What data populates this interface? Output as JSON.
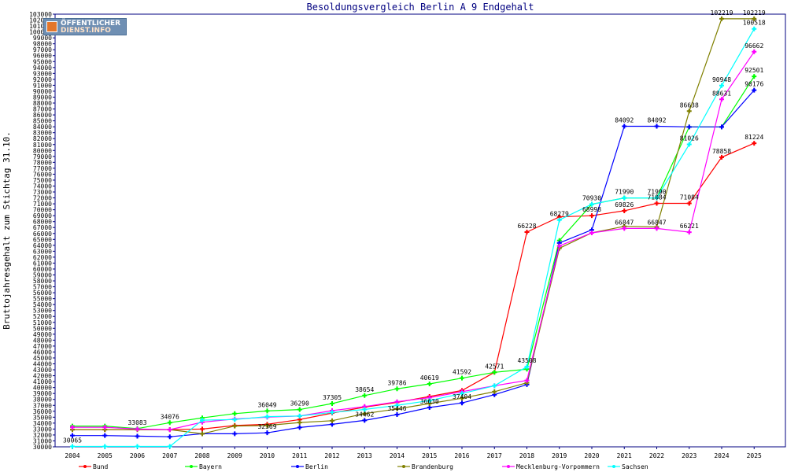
{
  "chart_data": {
    "type": "line",
    "title": "Besoldungsvergleich Berlin A 9 Endgehalt",
    "ylabel": "Bruttojahresgehalt zum Stichtag 31.10.",
    "xlabel": "",
    "ylim": [
      30000,
      103000
    ],
    "ytick_step": 1000,
    "grid": false,
    "legend_position": "bottom",
    "x": [
      "2004",
      "2005",
      "2006",
      "2007",
      "2008",
      "2009",
      "2010",
      "2011",
      "2012",
      "2013",
      "2014",
      "2015",
      "2016",
      "2017",
      "2018",
      "2019",
      "2020",
      "2021",
      "2022",
      "2023",
      "2024",
      "2025"
    ],
    "series": [
      {
        "name": "Bund",
        "color": "#ff0000",
        "values": [
          32900,
          32900,
          32900,
          32911,
          33000,
          33600,
          33800,
          34600,
          35700,
          36700,
          37500,
          38500,
          39500,
          42571,
          66228,
          68794,
          68998,
          69826,
          71084,
          71084,
          78858,
          81224
        ]
      },
      {
        "name": "Bayern",
        "color": "#00ff00",
        "values": [
          33500,
          33500,
          33083,
          34076,
          34880,
          35600,
          36049,
          36290,
          37305,
          38654,
          39786,
          40619,
          41592,
          42571,
          43106,
          64800,
          70930,
          71990,
          71990,
          83976,
          83976,
          92501
        ]
      },
      {
        "name": "Berlin",
        "color": "#0000ff",
        "values": [
          31900,
          31900,
          31800,
          31700,
          32200,
          32200,
          32369,
          33270,
          33800,
          34462,
          35446,
          36630,
          37404,
          38800,
          40500,
          64400,
          66600,
          84092,
          84092,
          83976,
          83976,
          90176
        ]
      },
      {
        "name": "Brandenburg",
        "color": "#808000",
        "values": [
          32900,
          32900,
          32911,
          32911,
          32200,
          33500,
          33600,
          34100,
          34400,
          35600,
          36400,
          37300,
          38200,
          39300,
          40800,
          63500,
          66100,
          67200,
          67100,
          86638,
          102219,
          102219
        ]
      },
      {
        "name": "Mecklenburg-Vorpommern",
        "color": "#ff00ff",
        "values": [
          33300,
          33300,
          33000,
          32911,
          34150,
          34700,
          35000,
          35200,
          36100,
          36800,
          37600,
          38300,
          39300,
          40300,
          41200,
          63900,
          66100,
          66847,
          66847,
          66221,
          88631,
          96662
        ]
      },
      {
        "name": "Sachsen",
        "color": "#00ffff",
        "values": [
          30065,
          30065,
          30065,
          30065,
          34500,
          34600,
          35100,
          35200,
          35800,
          36300,
          37000,
          37800,
          39000,
          40300,
          43508,
          68279,
          70930,
          71990,
          71990,
          81026,
          90948,
          100518
        ]
      }
    ],
    "data_labels": [
      {
        "series": "Bund",
        "x": "2018",
        "text": "66228"
      },
      {
        "series": "Bund",
        "x": "2020",
        "text": "68998"
      },
      {
        "series": "Bund",
        "x": "2021",
        "text": "69826"
      },
      {
        "series": "Bund",
        "x": "2022",
        "text": "71084"
      },
      {
        "series": "Bund",
        "x": "2023",
        "text": "71084"
      },
      {
        "series": "Bund",
        "x": "2024",
        "text": "78858"
      },
      {
        "series": "Bund",
        "x": "2025",
        "text": "81224"
      },
      {
        "series": "Bund",
        "x": "2017",
        "text": "42571"
      },
      {
        "series": "Bayern",
        "x": "2006",
        "text": "33083"
      },
      {
        "series": "Bayern",
        "x": "2007",
        "text": "34076"
      },
      {
        "series": "Bayern",
        "x": "2010",
        "text": "36049"
      },
      {
        "series": "Bayern",
        "x": "2011",
        "text": "36290"
      },
      {
        "series": "Bayern",
        "x": "2012",
        "text": "37305"
      },
      {
        "series": "Bayern",
        "x": "2013",
        "text": "38654"
      },
      {
        "series": "Bayern",
        "x": "2014",
        "text": "39786"
      },
      {
        "series": "Bayern",
        "x": "2015",
        "text": "40619"
      },
      {
        "series": "Bayern",
        "x": "2016",
        "text": "41592"
      },
      {
        "series": "Bayern",
        "x": "2021",
        "text": "71990"
      },
      {
        "series": "Bayern",
        "x": "2022",
        "text": "71990"
      },
      {
        "series": "Bayern",
        "x": "2025",
        "text": "92501"
      },
      {
        "series": "Bayern",
        "x": "2020",
        "text": "70930"
      },
      {
        "series": "Berlin",
        "x": "2010",
        "text": "32369"
      },
      {
        "series": "Berlin",
        "x": "2013",
        "text": "34462"
      },
      {
        "series": "Berlin",
        "x": "2014",
        "text": "35446"
      },
      {
        "series": "Berlin",
        "x": "2015",
        "text": "36630"
      },
      {
        "series": "Berlin",
        "x": "2016",
        "text": "37404"
      },
      {
        "series": "Berlin",
        "x": "2021",
        "text": "84092"
      },
      {
        "series": "Berlin",
        "x": "2022",
        "text": "84092"
      },
      {
        "series": "Berlin",
        "x": "2025",
        "text": "90176"
      },
      {
        "series": "Brandenburg",
        "x": "2023",
        "text": "86638"
      },
      {
        "series": "Brandenburg",
        "x": "2024",
        "text": "102219"
      },
      {
        "series": "Brandenburg",
        "x": "2025",
        "text": "102219"
      },
      {
        "series": "Mecklenburg-Vorpommern",
        "x": "2021",
        "text": "66847"
      },
      {
        "series": "Mecklenburg-Vorpommern",
        "x": "2022",
        "text": "66847"
      },
      {
        "series": "Mecklenburg-Vorpommern",
        "x": "2023",
        "text": "66221"
      },
      {
        "series": "Mecklenburg-Vorpommern",
        "x": "2024",
        "text": "88631"
      },
      {
        "series": "Mecklenburg-Vorpommern",
        "x": "2025",
        "text": "96662"
      },
      {
        "series": "Sachsen",
        "x": "2018",
        "text": "43508"
      },
      {
        "series": "Sachsen",
        "x": "2019",
        "text": "68279"
      },
      {
        "series": "Sachsen",
        "x": "2023",
        "text": "81026"
      },
      {
        "series": "Sachsen",
        "x": "2024",
        "text": "90948"
      },
      {
        "series": "Sachsen",
        "x": "2025",
        "text": "100518"
      },
      {
        "series": "Sachsen",
        "x": "2004",
        "text": "30065"
      }
    ]
  },
  "logo": {
    "line1_a": "ÖFFENTLICHER",
    "line2_a": "DIENST",
    "line2_b": ".INFO"
  }
}
